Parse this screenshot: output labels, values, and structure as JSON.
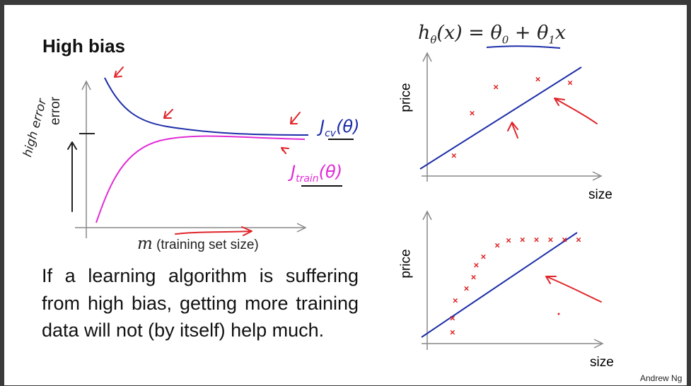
{
  "slide": {
    "title": "High bias",
    "equation": {
      "lhs": "h",
      "lhs_sub": "θ",
      "arg": "(x) = θ",
      "t0": "0",
      "plus": " + θ",
      "t1": "1",
      "x": "x"
    },
    "credit": "Andrew Ng"
  },
  "learning_curve": {
    "y_label": "error",
    "x_label_var": "m",
    "x_label_text": "(training set size)",
    "cv_label": "J",
    "cv_sub": "cv",
    "cv_arg": "(θ)",
    "train_label": "J",
    "train_sub": "train",
    "train_arg": "(θ)",
    "annotation": "high error",
    "colors": {
      "cv": "#1d2ea8",
      "train": "#e22cd6",
      "annotation": "#e0242a"
    }
  },
  "paragraph": "If a learning algorithm is suffering from high bias, getting more training data will not (by itself) help much.",
  "top_plot": {
    "y_label": "price",
    "x_label": "size",
    "marker": "×",
    "points": [
      [
        0.12,
        0.18
      ],
      [
        0.25,
        0.58
      ],
      [
        0.42,
        0.83
      ],
      [
        0.72,
        0.9
      ],
      [
        0.95,
        0.87
      ]
    ]
  },
  "bottom_plot": {
    "y_label": "price",
    "x_label": "size",
    "marker": "×",
    "points": [
      [
        0.1,
        0.08
      ],
      [
        0.1,
        0.2
      ],
      [
        0.12,
        0.35
      ],
      [
        0.2,
        0.45
      ],
      [
        0.25,
        0.55
      ],
      [
        0.27,
        0.65
      ],
      [
        0.32,
        0.72
      ],
      [
        0.42,
        0.82
      ],
      [
        0.5,
        0.86
      ],
      [
        0.6,
        0.87
      ],
      [
        0.7,
        0.87
      ],
      [
        0.8,
        0.87
      ],
      [
        0.9,
        0.87
      ],
      [
        1.0,
        0.87
      ]
    ]
  }
}
